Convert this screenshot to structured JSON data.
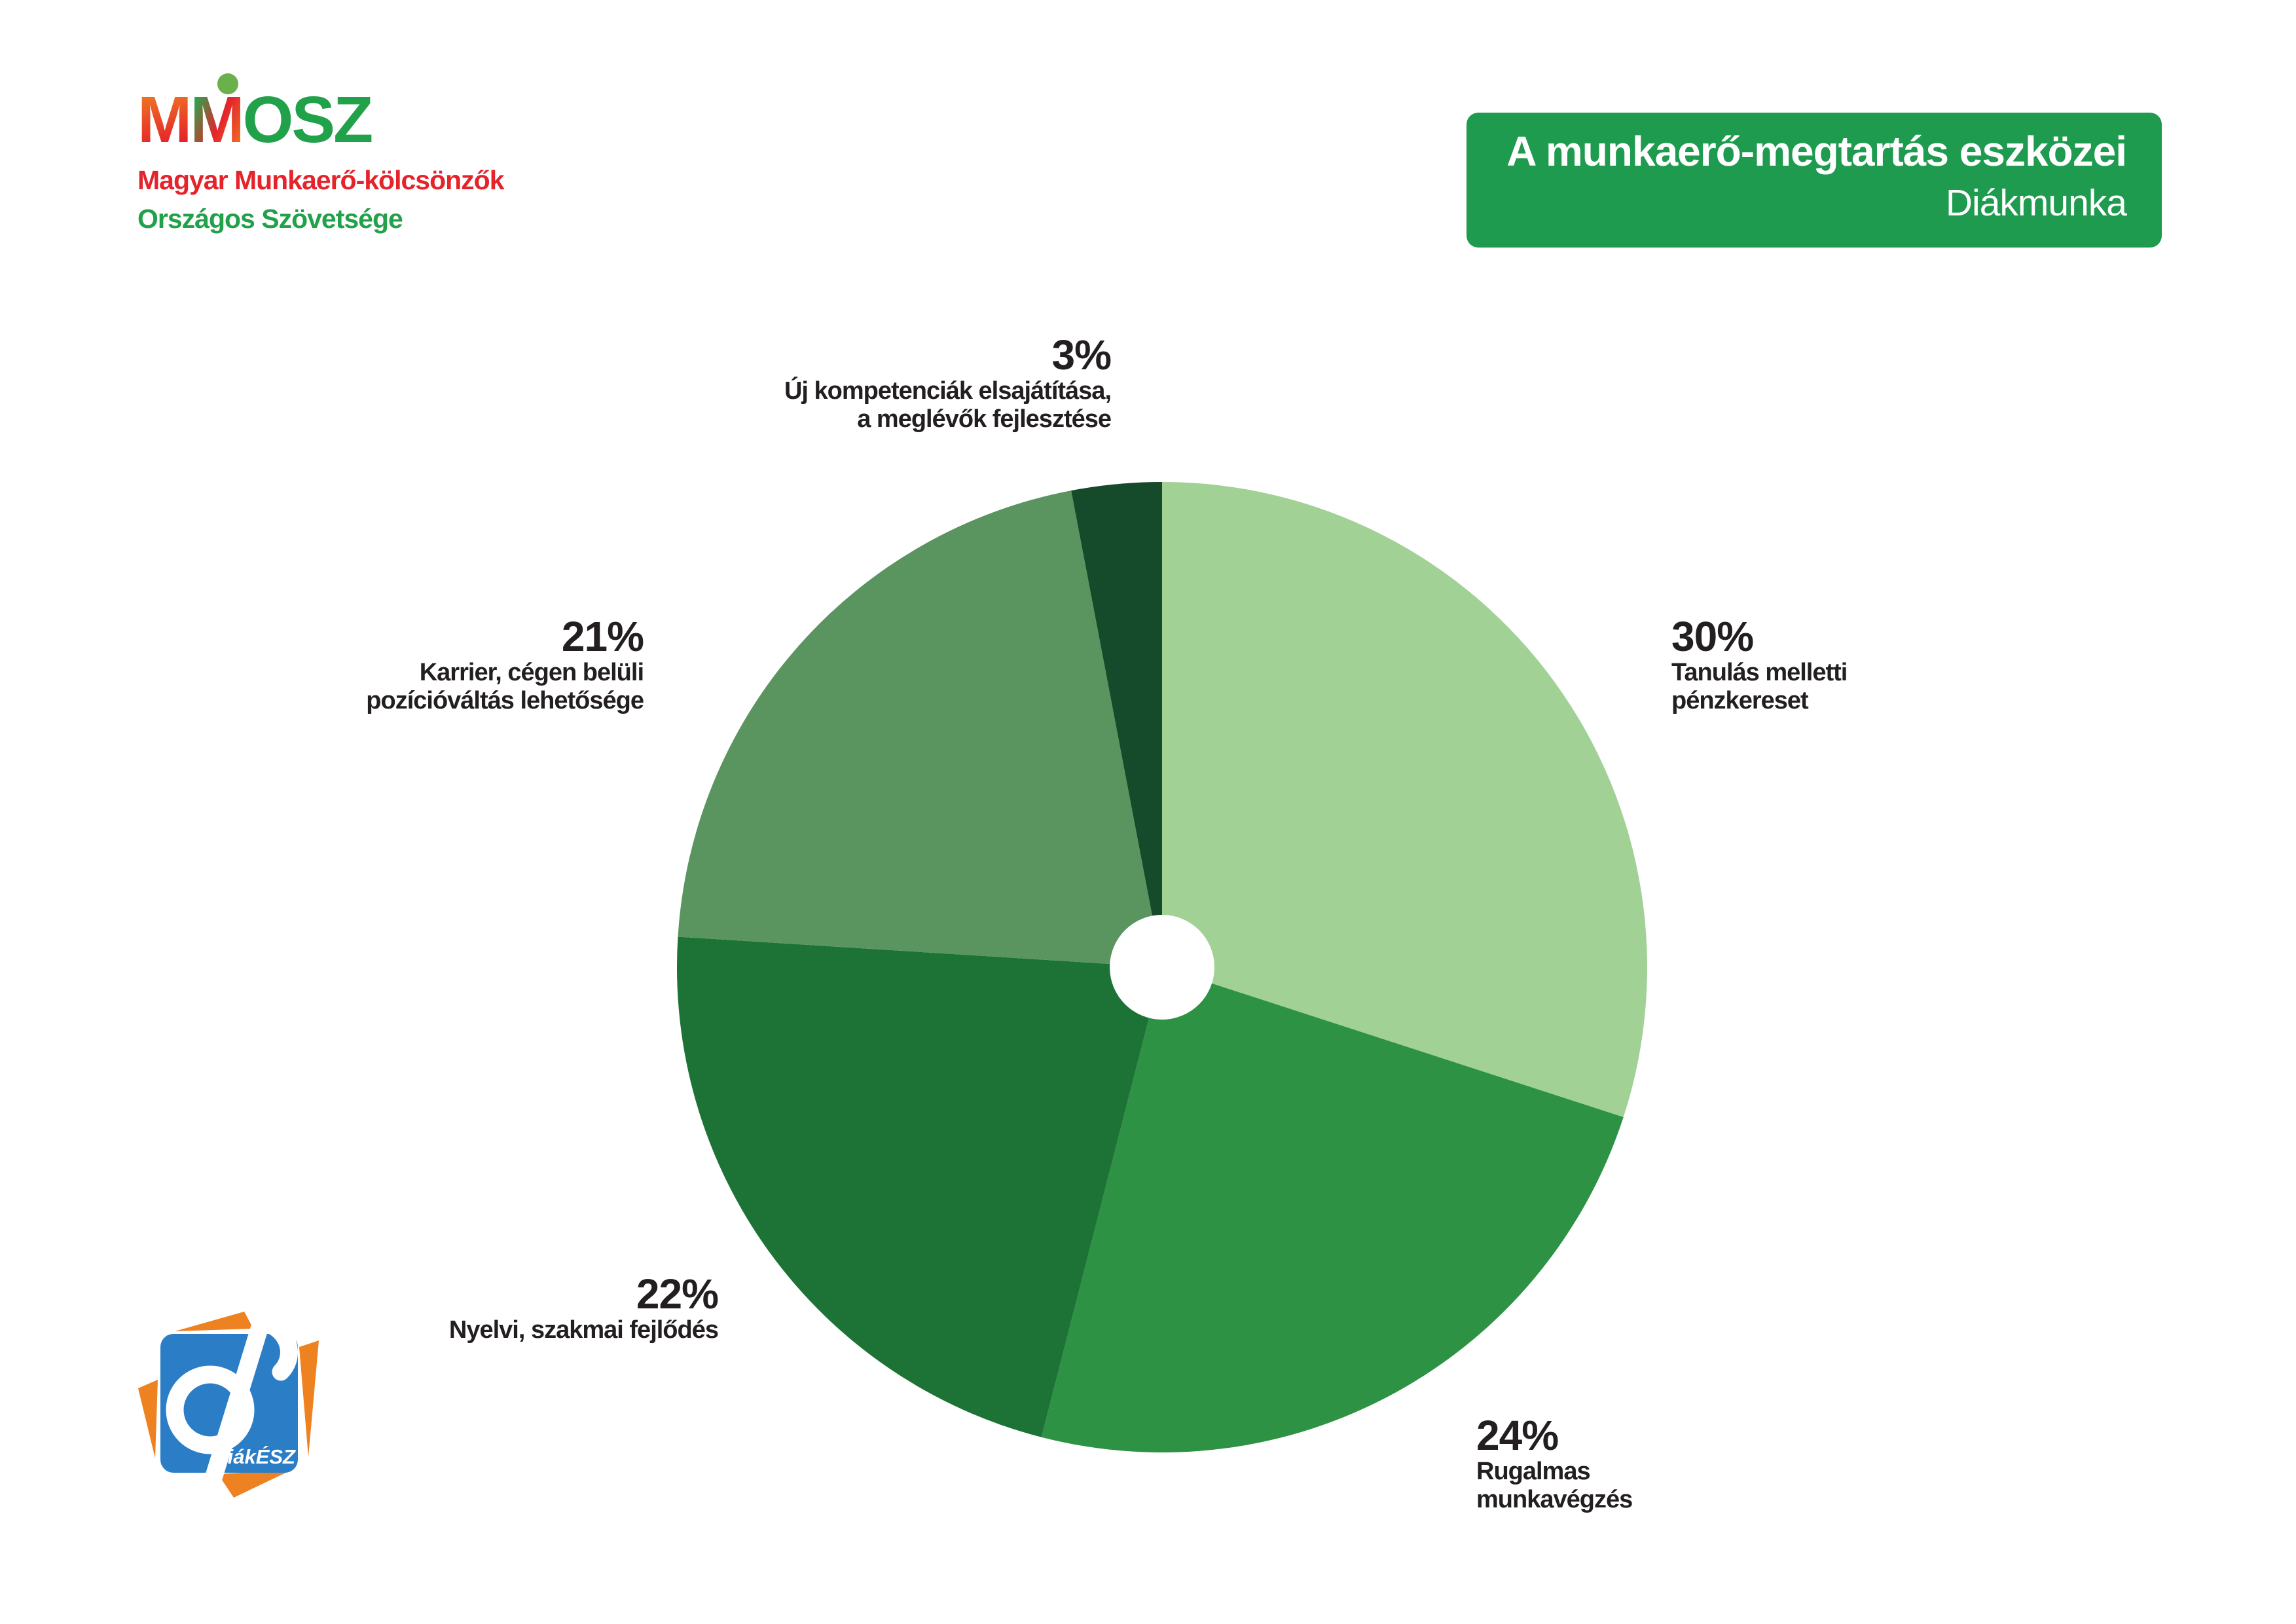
{
  "page": {
    "background": "#ffffff"
  },
  "logo_mmosz": {
    "acronym": {
      "m1": "M",
      "m2": "M",
      "rest": "OSZ"
    },
    "subtitle_line1": "Magyar Munkaerő-kölcsönzők",
    "subtitle_line2": "Országos Szövetsége",
    "colors": {
      "orange": "#f07b22",
      "red": "#e5232b",
      "green": "#22a14b"
    }
  },
  "title_box": {
    "line1": "A munkaerő-megtartás eszközei",
    "line2": "Diákmunka",
    "background": "#1e9b4e",
    "text_color": "#ffffff"
  },
  "chart_data": {
    "type": "pie",
    "title": "A munkaerő-megtartás eszközei — Diákmunka",
    "direction": "clockwise",
    "start_angle_deg": 0,
    "donut_hole_ratio": 0.108,
    "legend_position": "around",
    "slices": [
      {
        "label": "Tanulás melletti pénzkereset",
        "value": 30,
        "pct_label": "30%",
        "color": "#a1d195"
      },
      {
        "label": "Rugalmas munkavégzés",
        "value": 24,
        "pct_label": "24%",
        "color": "#2e9245"
      },
      {
        "label": "Nyelvi, szakmai fejlődés",
        "value": 22,
        "pct_label": "22%",
        "color": "#1c7335"
      },
      {
        "label": "Karrier, cégen belüli pozícióváltás lehetősége",
        "value": 21,
        "pct_label": "21%",
        "color": "#5a945e"
      },
      {
        "label": "Új kompetenciák elsajátítása, a meglévők fejlesztése",
        "value": 3,
        "pct_label": "3%",
        "color": "#154a2a"
      }
    ]
  },
  "callouts": {
    "s30": {
      "pct": "30%",
      "line1": "Tanulás melletti",
      "line2": "pénzkereset"
    },
    "s24": {
      "pct": "24%",
      "line1": "Rugalmas",
      "line2": "munkavégzés"
    },
    "s22": {
      "pct": "22%",
      "line1": "Nyelvi, szakmai fejlődés"
    },
    "s21": {
      "pct": "21%",
      "line1": "Karrier, cégen belüli",
      "line2": "pozícióváltás lehetősége"
    },
    "s3": {
      "pct": "3%",
      "line1": "Új kompetenciák elsajátítása,",
      "line2": "a meglévők fejlesztése"
    }
  },
  "logo_diakesz": {
    "text": "DiákÉSZ",
    "colors": {
      "blue": "#2b7ec6",
      "orange": "#ee8120",
      "text": "#ffffff"
    }
  }
}
